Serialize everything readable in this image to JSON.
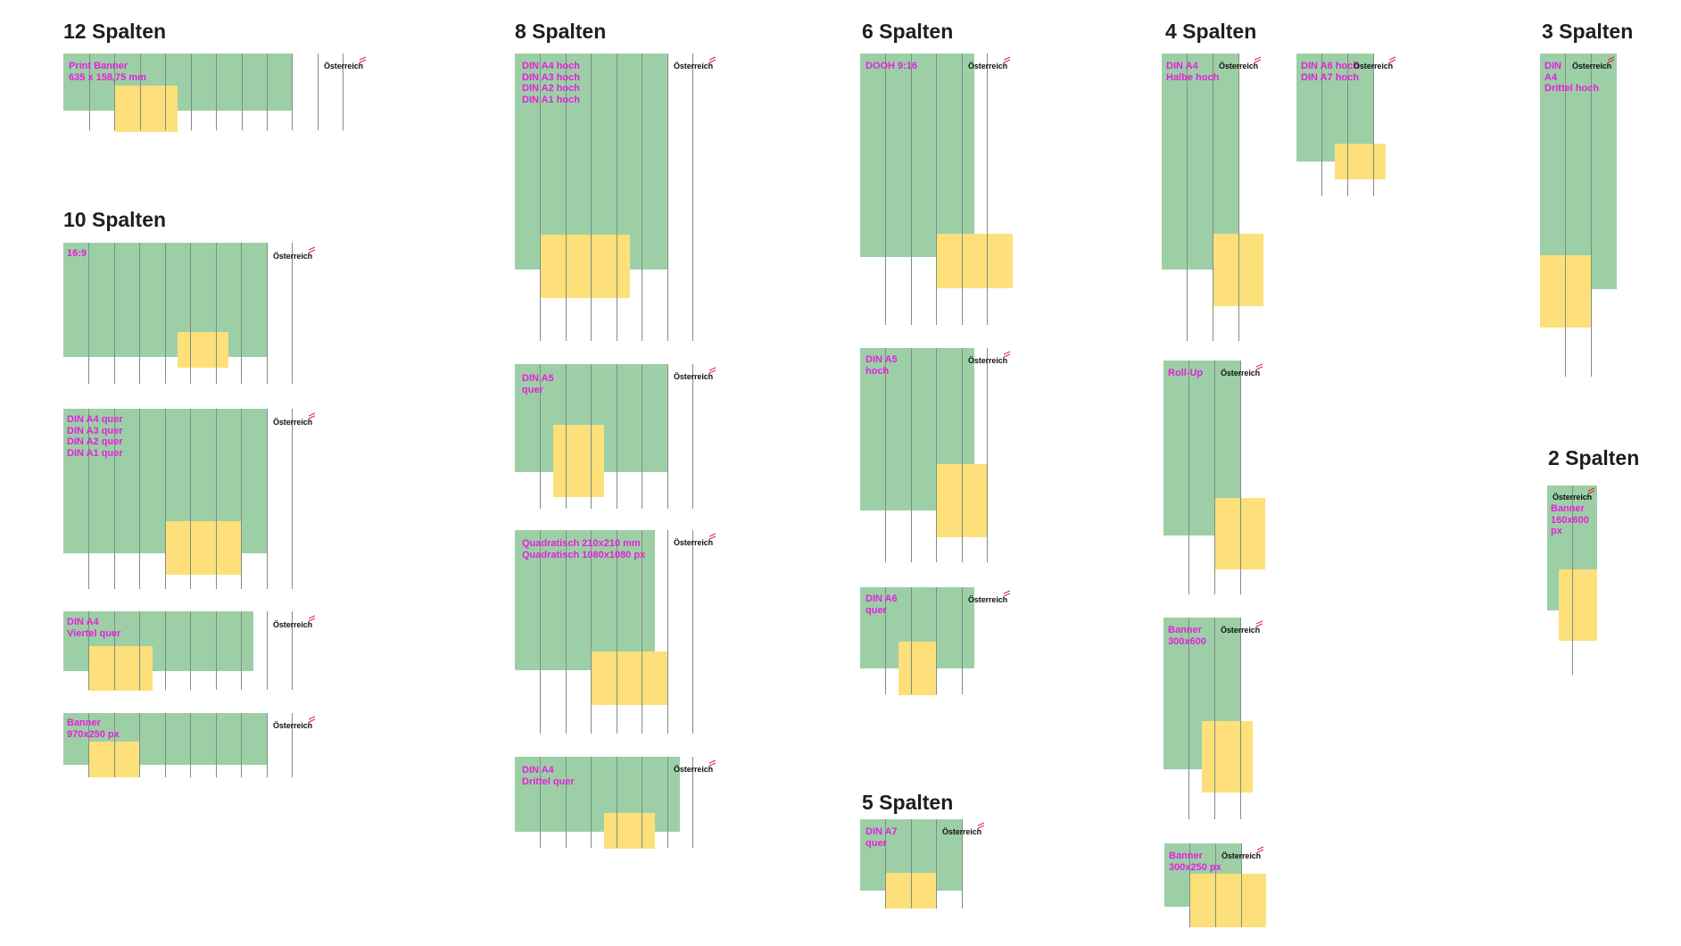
{
  "logo_text": "Österreich",
  "colors": {
    "green": "#9dcfa6",
    "yellow": "#fde07a",
    "label": "#e61ee0",
    "grid": "#7f8f84",
    "heading": "#1e1e1e",
    "flag": "#e3001b"
  },
  "icons": {
    "logo_mark": "red-white-red-flag-icon"
  },
  "headings": {
    "s12": "12 Spalten",
    "s10": "10 Spalten",
    "s8": "8 Spalten",
    "s6": "6 Spalten",
    "s5": "5 Spalten",
    "s4": "4 Spalten",
    "s3": "3 Spalten",
    "s2": "2 Spalten"
  },
  "formats": {
    "print_banner": "Print Banner\n635 x 158,75 mm",
    "ratio_16_9": "16:9",
    "din_a_quer": "DIN A4 quer\nDIN A3 quer\nDIN A2 quer\nDIN A1 quer",
    "din_a4_viertel_quer": "DIN A4\nViertel quer",
    "banner_970x250": "Banner\n970x250 px",
    "din_a_hoch": "DIN A4 hoch\nDIN A3 hoch\nDIN A2 hoch\nDIN A1 hoch",
    "din_a5_quer": "DIN A5\nquer",
    "quadratisch": "Quadratisch 210x210 mm\nQuadratisch 1080x1080 px",
    "din_a4_drittel_quer": "DIN A4\nDrittel quer",
    "dooh_9_16": "DOOH 9:16",
    "din_a5_hoch": "DIN A5\nhoch",
    "din_a6_quer": "DIN A6\nquer",
    "din_a7_quer": "DIN A7\nquer",
    "din_a4_halbe_hoch": "DIN A4\nHalbe hoch",
    "din_a6_a7_hoch": "DIN A6 hoch\nDIN A7 hoch",
    "roll_up": "Roll-Up",
    "banner_300x600": "Banner\n300x600",
    "banner_300x250": "Banner\n300x250 px",
    "din_a4_drittel_hoch": "DIN\nA4\nDrittel hoch",
    "banner_160x600": "Banner\n160x600\npx"
  }
}
